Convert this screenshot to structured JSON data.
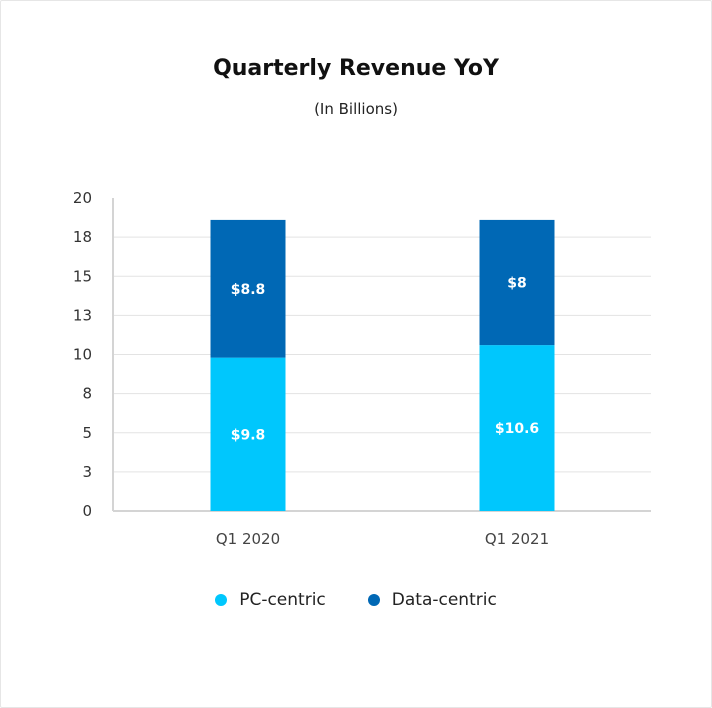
{
  "chart_data": {
    "type": "bar",
    "stacked": true,
    "title": "Quarterly Revenue YoY",
    "subtitle": "(In Billions)",
    "categories": [
      "Q1 2020",
      "Q1 2021"
    ],
    "series": [
      {
        "name": "PC-centric",
        "values": [
          9.8,
          10.6
        ],
        "labels": [
          "$9.8",
          "$10.6"
        ],
        "color": "#00c7fd"
      },
      {
        "name": "Data-centric",
        "values": [
          8.8,
          8
        ],
        "labels": [
          "$8.8",
          "$8"
        ],
        "color": "#0068b5"
      }
    ],
    "yticks": [
      "0",
      "3",
      "5",
      "8",
      "10",
      "13",
      "15",
      "18",
      "20"
    ],
    "ylim": [
      0,
      20
    ],
    "grid": true,
    "legend_position": "bottom"
  }
}
